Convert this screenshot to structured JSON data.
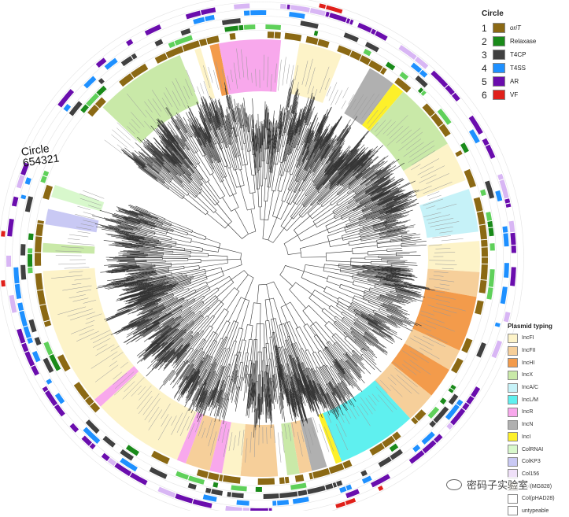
{
  "circle_legend": {
    "title": "Circle",
    "items": [
      {
        "num": "1",
        "label": "oriT",
        "color": "#8B6914"
      },
      {
        "num": "2",
        "label": "Relaxase",
        "color": "#1a8a1a"
      },
      {
        "num": "3",
        "label": "T4CP",
        "color": "#404040"
      },
      {
        "num": "4",
        "label": "T4SS",
        "color": "#1e90ff"
      },
      {
        "num": "5",
        "label": "AR",
        "color": "#6a0dad"
      },
      {
        "num": "6",
        "label": "VF",
        "color": "#e0201a"
      }
    ]
  },
  "circle_tag": {
    "line1": "Circle",
    "line2": "654321"
  },
  "plasmid_typing_legend": {
    "title": "Plasmid typing",
    "items": [
      {
        "label": "IncFI",
        "color": "#fdf3c8"
      },
      {
        "label": "IncFII",
        "color": "#f6cf9a"
      },
      {
        "label": "IncHI",
        "color": "#f39b4b"
      },
      {
        "label": "IncX",
        "color": "#c9e9a8"
      },
      {
        "label": "IncA/C",
        "color": "#c6f2f8"
      },
      {
        "label": "IncL/M",
        "color": "#5ff0ef"
      },
      {
        "label": "IncR",
        "color": "#f8a8ec"
      },
      {
        "label": "IncN",
        "color": "#b0b0b0"
      },
      {
        "label": "IncI",
        "color": "#fdf02a"
      },
      {
        "label": "ColRNAI",
        "color": "#d8f8cc"
      },
      {
        "label": "ColKP3",
        "color": "#c9c9f4"
      },
      {
        "label": "Col156",
        "color": "#efe0f8"
      },
      {
        "label": "Col(MG828)",
        "color": "#f2ecd8"
      },
      {
        "label": "Col(pHAD28)",
        "color": "#ffffff"
      },
      {
        "label": "untypeable",
        "color": "#ffffff"
      }
    ]
  },
  "watermark": {
    "text": "密码子实验室"
  }
}
